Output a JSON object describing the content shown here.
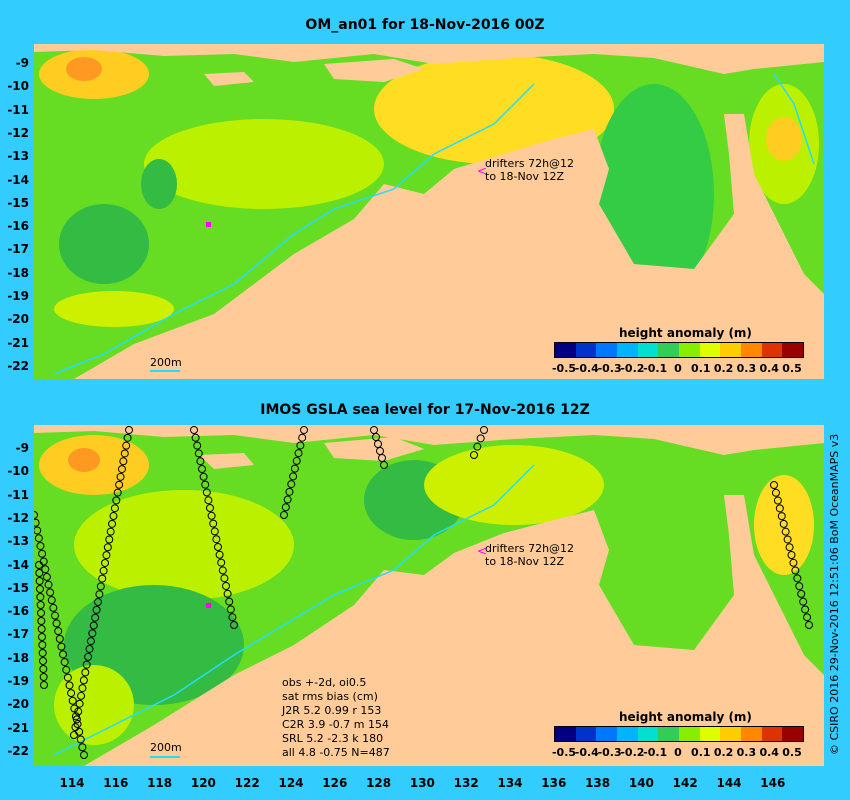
{
  "top_panel": {
    "title": "OM_an01 for 18-Nov-2016 00Z",
    "drifter_note": [
      "drifters 72h@12",
      "to 18-Nov 12Z"
    ],
    "scale_label": "200m",
    "colorbar_title": "height anomaly (m)"
  },
  "bottom_panel": {
    "title": "IMOS GSLA sea level  for 17-Nov-2016 12Z",
    "drifter_note": [
      "drifters 72h@12",
      "to 18-Nov 12Z"
    ],
    "scale_label": "200m",
    "colorbar_title": "height anomaly (m)",
    "stats": [
      "obs +-2d, oi0.5",
      "sat rms bias (cm)",
      "J2R   5.2  0.99  r 153",
      "C2R   3.9  -0.7  m 154",
      "SRL    5.2  -2.3  k 180",
      "all    4.8  -0.75  N=487"
    ]
  },
  "colorbar": {
    "labels": [
      "-0.5",
      "-0.4",
      "-0.3",
      "-0.2",
      "-0.1",
      "0",
      "0.1",
      "0.2",
      "0.3",
      "0.4",
      "0.5"
    ],
    "colors": [
      "#000080",
      "#0033cc",
      "#0077ff",
      "#00b4ff",
      "#00e0d0",
      "#33cc55",
      "#88ee00",
      "#ddff00",
      "#ffcc00",
      "#ff8800",
      "#dd3300",
      "#990000"
    ]
  },
  "y_axis_labels": [
    "-9",
    "-10",
    "-11",
    "-12",
    "-13",
    "-14",
    "-15",
    "-16",
    "-17",
    "-18",
    "-19",
    "-20",
    "-21",
    "-22"
  ],
  "x_axis_labels": [
    "114",
    "116",
    "118",
    "120",
    "122",
    "124",
    "126",
    "128",
    "130",
    "132",
    "134",
    "136",
    "138",
    "140",
    "142",
    "144",
    "146"
  ],
  "credit": "© CSIRO 2016  29-Nov-2016 12:51:06 BoM OceanMAPS v3",
  "colors": {
    "background": "#33ccff",
    "land": "#ffcc99",
    "ocean_base": "#66dd22",
    "contour": "#22ddff"
  }
}
